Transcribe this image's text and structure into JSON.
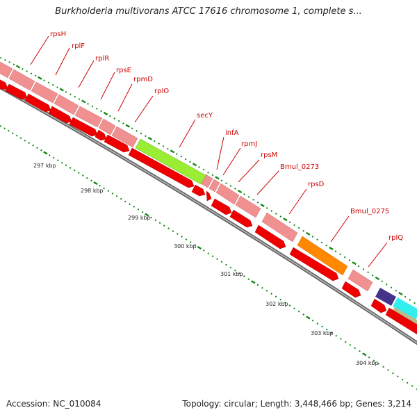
{
  "title": "Burkholderia multivorans ATCC 17616 chromosome 1, complete s...",
  "footer": {
    "accession": "Accession: NC_010084",
    "stats": "Topology: circular; Length: 3,448,466 bp; Genes: 3,214"
  },
  "kbp_labels": [
    "297 kbp",
    "298 kbp",
    "299 kbp",
    "300 kbp",
    "301 kbp",
    "302 kbp",
    "303 kbp",
    "304 kbp"
  ],
  "gene_labels": [
    "rpsH",
    "rplF",
    "rplR",
    "rpsE",
    "rpmD",
    "rplO",
    "secY",
    "infA",
    "rpmJ",
    "rpsM",
    "Bmul_0273",
    "rpsD",
    "Bmul_0275",
    "rplQ"
  ],
  "colors": {
    "pink": "#f09090",
    "red": "#ee0000",
    "lime": "#99ee33",
    "orange": "#ff8800",
    "navy": "#443388",
    "cyan": "#33eeee",
    "tan": "#bbbb88",
    "tick": "#118811",
    "label_red": "#cc0000"
  }
}
